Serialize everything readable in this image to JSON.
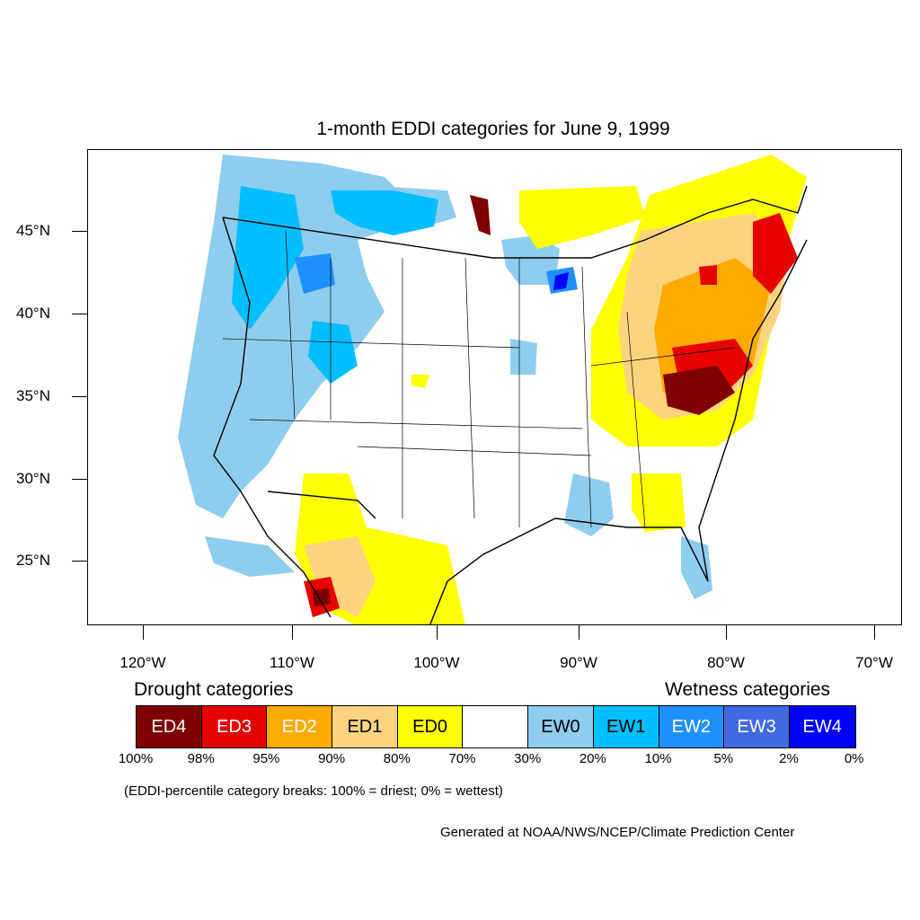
{
  "title": "1-month EDDI categories for June 9, 1999",
  "lat_ticks": [
    {
      "label": "45°N",
      "lat": 45
    },
    {
      "label": "40°N",
      "lat": 40
    },
    {
      "label": "35°N",
      "lat": 35
    },
    {
      "label": "30°N",
      "lat": 30
    },
    {
      "label": "25°N",
      "lat": 25
    }
  ],
  "lon_ticks": [
    {
      "label": "120°W",
      "lon": -120
    },
    {
      "label": "110°W",
      "lon": -110
    },
    {
      "label": "100°W",
      "lon": -100
    },
    {
      "label": "90°W",
      "lon": -90
    },
    {
      "label": "80°W",
      "lon": -80
    },
    {
      "label": "70°W",
      "lon": -70
    }
  ],
  "legend": {
    "drought_heading": "Drought categories",
    "wetness_heading": "Wetness categories",
    "categories": [
      {
        "label": "ED4",
        "color": "#7f0000",
        "text_color": "#ffffff"
      },
      {
        "label": "ED3",
        "color": "#e60000",
        "text_color": "#ffffff"
      },
      {
        "label": "ED2",
        "color": "#ffaa00",
        "text_color": "#ffffff"
      },
      {
        "label": "ED1",
        "color": "#fcd37f",
        "text_color": "#000000"
      },
      {
        "label": "ED0",
        "color": "#ffff00",
        "text_color": "#000000"
      },
      {
        "label": "",
        "color": "#ffffff",
        "text_color": "#000000"
      },
      {
        "label": "EW0",
        "color": "#8fcdee",
        "text_color": "#000000"
      },
      {
        "label": "EW1",
        "color": "#00bfff",
        "text_color": "#000000"
      },
      {
        "label": "EW2",
        "color": "#1e90ff",
        "text_color": "#ffffff"
      },
      {
        "label": "EW3",
        "color": "#4169e1",
        "text_color": "#ffffff"
      },
      {
        "label": "EW4",
        "color": "#0000ff",
        "text_color": "#ffffff"
      }
    ],
    "breaks": [
      "100%",
      "98%",
      "95%",
      "90%",
      "80%",
      "70%",
      "30%",
      "20%",
      "10%",
      "5%",
      "2%",
      "0%"
    ]
  },
  "note": "(EDDI-percentile category breaks: 100% = driest; 0% = wettest)",
  "credit": "Generated at NOAA/NWS/NCEP/Climate Prediction Center"
}
